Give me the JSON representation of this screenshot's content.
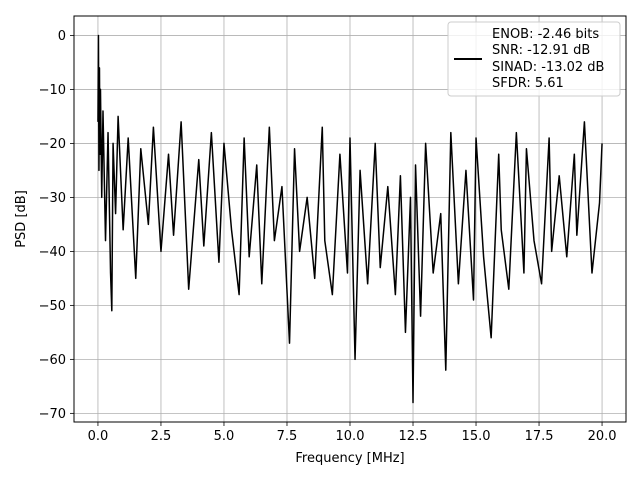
{
  "chart_data": {
    "type": "line",
    "title": "",
    "xlabel": "Frequency [MHz]",
    "ylabel": "PSD [dB]",
    "xlim": [
      -0.95,
      20.95
    ],
    "ylim": [
      -71.6,
      3.6
    ],
    "x_ticks": [
      0.0,
      2.5,
      5.0,
      7.5,
      10.0,
      12.5,
      15.0,
      17.5,
      20.0
    ],
    "x_tick_labels": [
      "0.0",
      "2.5",
      "5.0",
      "7.5",
      "10.0",
      "12.5",
      "15.0",
      "17.5",
      "20.0"
    ],
    "y_ticks": [
      0,
      -10,
      -20,
      -30,
      -40,
      -50,
      -60,
      -70
    ],
    "y_tick_labels": [
      "0",
      "−10",
      "−20",
      "−30",
      "−40",
      "−50",
      "−60",
      "−70"
    ],
    "grid": true,
    "legend_position": "top-right",
    "legend_entries": [
      "ENOB: -2.46 bits",
      "SNR: -12.91 dB",
      "SINAD: -13.02 dB",
      "SFDR: 5.61"
    ],
    "line_color": "#000000",
    "series": [
      {
        "x": [
          0.0,
          0.02,
          0.04,
          0.06,
          0.08,
          0.1,
          0.15,
          0.2,
          0.3,
          0.4,
          0.5,
          0.55,
          0.6,
          0.7,
          0.8,
          1.0,
          1.2,
          1.5,
          1.7,
          2.0,
          2.2,
          2.5,
          2.8,
          3.0,
          3.3,
          3.6,
          4.0,
          4.2,
          4.5,
          4.8,
          5.0,
          5.3,
          5.6,
          5.8,
          6.0,
          6.3,
          6.5,
          6.8,
          7.0,
          7.3,
          7.6,
          7.8,
          8.0,
          8.3,
          8.6,
          8.9,
          9.0,
          9.3,
          9.6,
          9.9,
          10.0,
          10.2,
          10.4,
          10.7,
          11.0,
          11.2,
          11.5,
          11.8,
          12.0,
          12.2,
          12.4,
          12.5,
          12.6,
          12.8,
          13.0,
          13.3,
          13.6,
          13.8,
          14.0,
          14.3,
          14.6,
          14.9,
          15.0,
          15.3,
          15.6,
          15.9,
          16.0,
          16.3,
          16.6,
          16.9,
          17.0,
          17.3,
          17.6,
          17.9,
          18.0,
          18.3,
          18.6,
          18.9,
          19.0,
          19.3,
          19.6,
          19.9,
          20.0
        ],
        "y": [
          -16,
          0,
          -25,
          -6,
          -22,
          -10,
          -30,
          -14,
          -38,
          -18,
          -44,
          -51,
          -20,
          -33,
          -15,
          -36,
          -19,
          -45,
          -21,
          -35,
          -17,
          -40,
          -22,
          -37,
          -16,
          -47,
          -23,
          -39,
          -18,
          -42,
          -20,
          -36,
          -48,
          -19,
          -41,
          -24,
          -46,
          -17,
          -38,
          -28,
          -57,
          -21,
          -40,
          -30,
          -45,
          -17,
          -38,
          -48,
          -22,
          -44,
          -19,
          -60,
          -25,
          -46,
          -20,
          -43,
          -28,
          -48,
          -26,
          -55,
          -30,
          -68,
          -24,
          -52,
          -20,
          -44,
          -33,
          -62,
          -18,
          -46,
          -25,
          -49,
          -19,
          -41,
          -56,
          -22,
          -36,
          -47,
          -18,
          -44,
          -21,
          -38,
          -46,
          -19,
          -40,
          -26,
          -41,
          -22,
          -37,
          -16,
          -44,
          -31,
          -20
        ]
      }
    ]
  }
}
